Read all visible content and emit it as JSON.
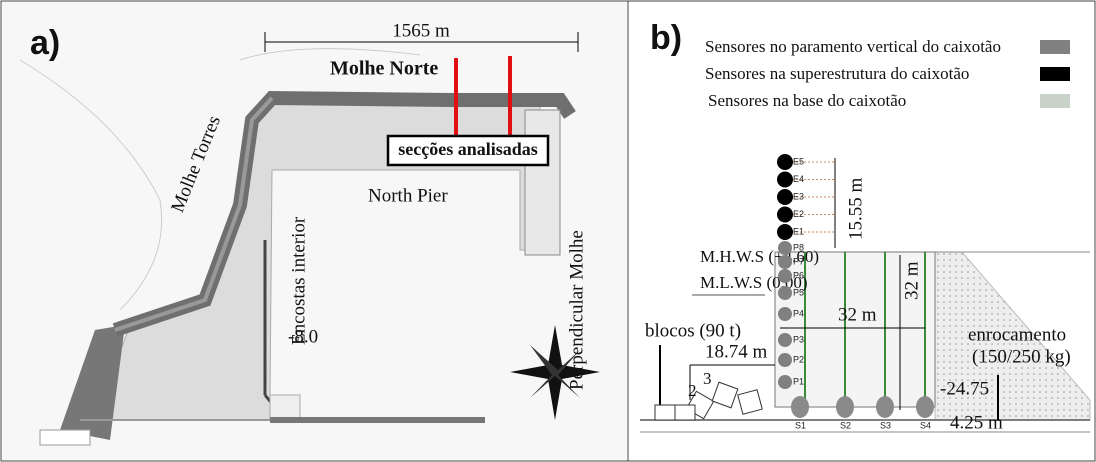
{
  "panel_a": {
    "label": "a)",
    "dimension": "1565 m",
    "breakwater_name": "Molhe Norte",
    "sections_box": "secções analisadas",
    "molhe_torres": "Molhe Torres",
    "north_pier": "North Pier",
    "encostas": "Encostas interior",
    "perpendicular": "Perpendicular Molhe",
    "depth": "-8.0"
  },
  "panel_b": {
    "label": "b)",
    "legend": [
      "Sensores no paramento vertical do caixotão",
      "Sensores na superestrutura do caixotão",
      "Sensores na base do caixotão"
    ],
    "superstructure_sensors": [
      "E5",
      "E4",
      "E3",
      "E2",
      "E1"
    ],
    "wall_sensors": [
      "P8",
      "P7",
      "P6",
      "P5",
      "P4",
      "P3",
      "P2",
      "P1"
    ],
    "base_sensors": [
      "S1",
      "S2",
      "S3",
      "S4"
    ],
    "height_superstructure": "15.55 m",
    "mhws": "M.H.W.S (+4.60)",
    "mlws": "M.L.W.S (0.00)",
    "caisson_height": "32 m",
    "caisson_width": "32 m",
    "blocks": "blocos (90 t)",
    "blocks_width": "18.74 m",
    "slope_v": "2",
    "slope_h": "3",
    "rubble": [
      "enrocamento",
      "(150/250 kg)"
    ],
    "base_level": "-24.75",
    "base_thickness": "4.25 m"
  }
}
